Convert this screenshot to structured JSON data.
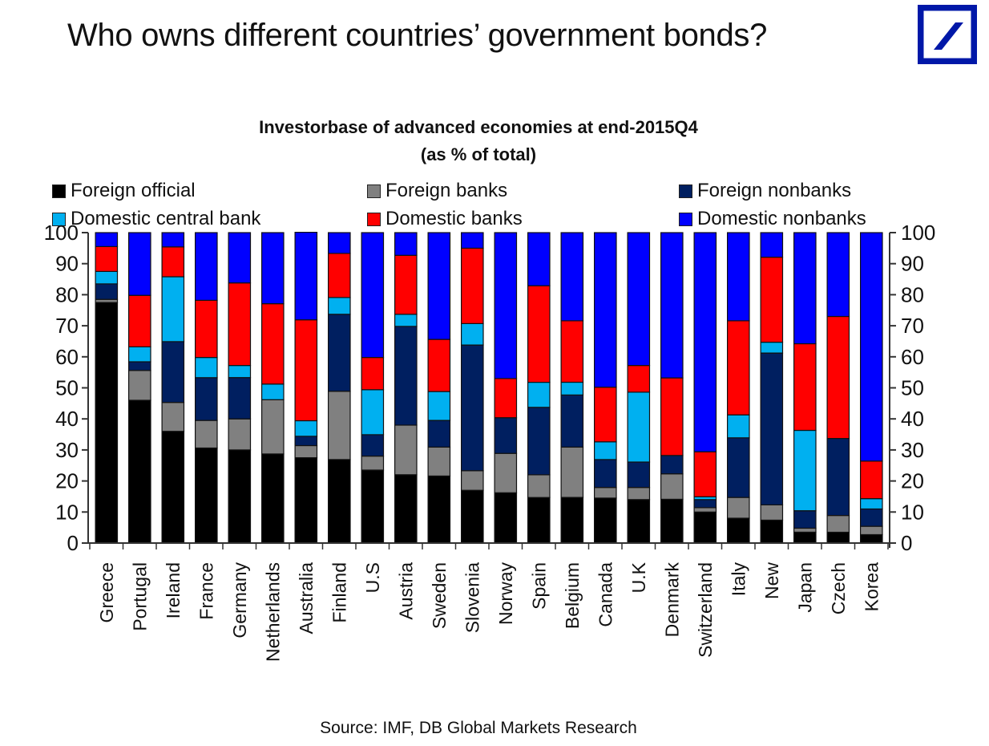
{
  "header": {
    "title": "Who owns different countries’ government bonds?",
    "logo": "deutsche-bank-logo"
  },
  "chart_data": {
    "type": "bar",
    "stacked": true,
    "title": "Investorbase of advanced economies at end-2015Q4",
    "subtitle": "(as % of total)",
    "xlabel": "",
    "ylabel": "",
    "ylim": [
      0,
      100
    ],
    "yticks": [
      0,
      10,
      20,
      30,
      40,
      50,
      60,
      70,
      80,
      90,
      100
    ],
    "grid": false,
    "legend_position": "top",
    "categories": [
      "Greece",
      "Portugal",
      "Ireland",
      "France",
      "Germany",
      "Netherlands",
      "Australia",
      "Finland",
      "U.S",
      "Austria",
      "Sweden",
      "Slovenia",
      "Norway",
      "Spain",
      "Belgium",
      "Canada",
      "U.K",
      "Denmark",
      "Switzerland",
      "Italy",
      "New",
      "Japan",
      "Czech",
      "Korea"
    ],
    "series": [
      {
        "name": "Foreign official",
        "color": "#000000",
        "values": [
          77.5,
          46,
          36,
          30.6,
          30,
          28.7,
          27.5,
          26.9,
          23.5,
          22,
          21.6,
          17,
          16.2,
          14.7,
          14.7,
          14.5,
          14,
          14.1,
          10,
          8,
          7.4,
          3.5,
          3.5,
          2.7
        ]
      },
      {
        "name": "Foreign banks",
        "color": "#808080",
        "values": [
          1,
          9.6,
          9.3,
          8.9,
          10,
          17.5,
          3.9,
          22,
          4.5,
          16,
          9.3,
          6.3,
          12.7,
          7.3,
          16.2,
          3.4,
          3.9,
          8.2,
          1.4,
          6.7,
          4.9,
          1.3,
          5.4,
          2.7
        ]
      },
      {
        "name": "Foreign nonbanks",
        "color": "#001f60",
        "values": [
          5,
          2.8,
          19.6,
          13.8,
          13.3,
          0,
          3,
          24.8,
          6.9,
          31.8,
          8.6,
          40.5,
          11.5,
          21.7,
          16.8,
          9,
          8.2,
          5.9,
          2.6,
          19.2,
          48.9,
          5.6,
          24.8,
          5.6
        ]
      },
      {
        "name": "Domestic central bank",
        "color": "#00b0f0",
        "values": [
          4,
          4.8,
          20.9,
          6.5,
          3.9,
          5,
          5,
          5.4,
          14.5,
          3.9,
          9.3,
          6.9,
          0,
          8.1,
          4.1,
          5.7,
          22.5,
          0,
          0.9,
          7.4,
          3.5,
          25.9,
          0,
          3.3
        ]
      },
      {
        "name": "Domestic banks",
        "color": "#ff0000",
        "values": [
          8,
          16.6,
          9.6,
          18.4,
          26.6,
          25.9,
          32.5,
          14.2,
          10.4,
          19,
          16.8,
          24.3,
          12.6,
          31.1,
          19.8,
          17.6,
          8.6,
          25,
          14.5,
          30.3,
          27.4,
          27.9,
          39.3,
          12.1
        ]
      },
      {
        "name": "Domestic nonbanks",
        "color": "#0000ff",
        "values": [
          4.5,
          20.2,
          4.6,
          21.8,
          16.2,
          22.9,
          28.2,
          6.7,
          40.2,
          7.3,
          34.4,
          5,
          47,
          17.1,
          28.4,
          49.8,
          42.8,
          46.8,
          70.6,
          28.4,
          7.9,
          35.8,
          27,
          73.6
        ]
      }
    ]
  },
  "legend": {
    "items": [
      {
        "label": "Foreign official"
      },
      {
        "label": "Foreign banks"
      },
      {
        "label": "Foreign nonbanks"
      },
      {
        "label": "Domestic central bank"
      },
      {
        "label": "Domestic banks"
      },
      {
        "label": "Domestic nonbanks"
      }
    ]
  },
  "footer": {
    "source": "Source: IMF, DB Global Markets Research"
  },
  "colors": {
    "logo_blue": "#0018a8",
    "axis": "#333333"
  }
}
